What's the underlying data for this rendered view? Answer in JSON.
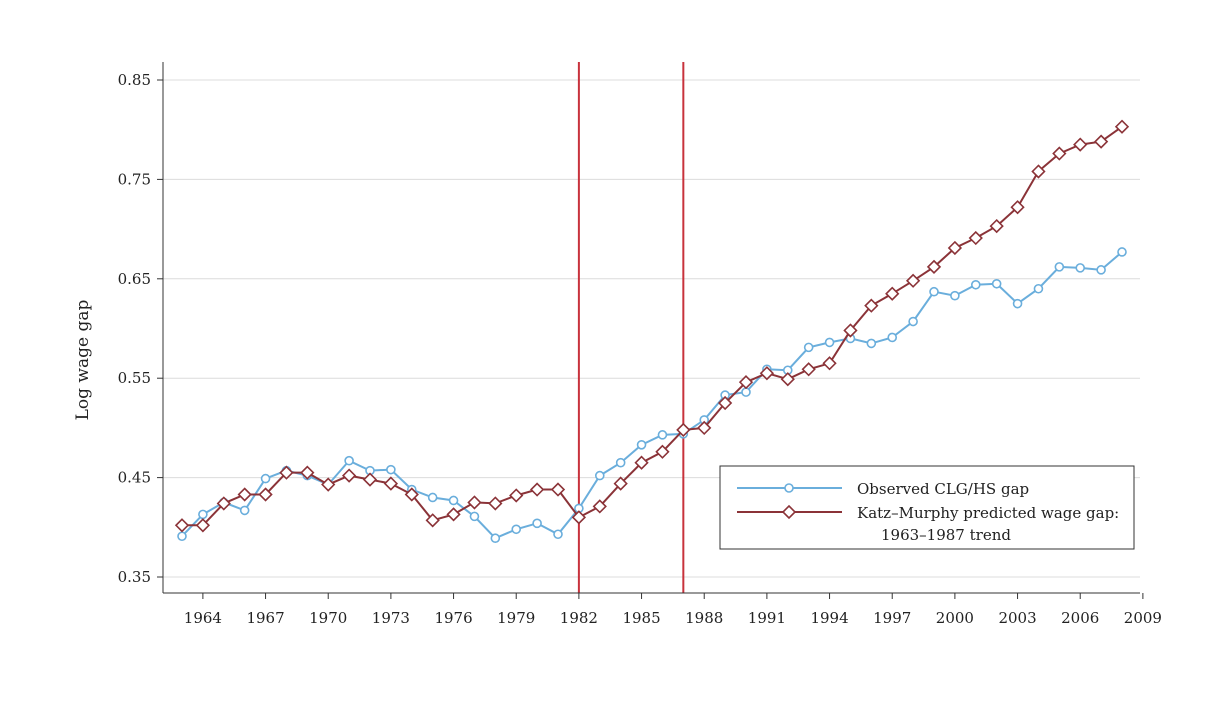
{
  "chart_data": {
    "type": "line",
    "title": "",
    "xlabel": "",
    "ylabel": "Log wage gap",
    "xlim": [
      1962,
      2009.5
    ],
    "ylim": [
      0.335,
      0.865
    ],
    "x_ticks": [
      1964,
      1967,
      1970,
      1973,
      1976,
      1979,
      1982,
      1985,
      1988,
      1991,
      1994,
      1997,
      2000,
      2003,
      2006,
      2009
    ],
    "y_ticks": [
      0.35,
      0.45,
      0.55,
      0.65,
      0.75,
      0.85
    ],
    "y_tick_labels": [
      "0.35",
      "0.45",
      "0.55",
      "0.65",
      "0.75",
      "0.85"
    ],
    "grid": "horizontal",
    "vertical_lines": [
      1982,
      1987
    ],
    "legend_position": "bottom-right",
    "series": [
      {
        "name": "Observed CLG/HS gap",
        "color": "#6aaedc",
        "marker": "circle",
        "x": [
          1963,
          1964,
          1965,
          1966,
          1967,
          1968,
          1969,
          1970,
          1971,
          1972,
          1973,
          1974,
          1975,
          1976,
          1977,
          1978,
          1979,
          1980,
          1981,
          1982,
          1983,
          1984,
          1985,
          1986,
          1987,
          1988,
          1989,
          1990,
          1991,
          1992,
          1993,
          1994,
          1995,
          1996,
          1997,
          1998,
          1999,
          2000,
          2001,
          2002,
          2003,
          2004,
          2005,
          2006,
          2007,
          2008
        ],
        "values": [
          0.391,
          0.413,
          0.425,
          0.417,
          0.449,
          0.457,
          0.452,
          0.443,
          0.467,
          0.457,
          0.458,
          0.438,
          0.43,
          0.427,
          0.411,
          0.389,
          0.398,
          0.404,
          0.393,
          0.419,
          0.452,
          0.465,
          0.483,
          0.493,
          0.494,
          0.508,
          0.533,
          0.536,
          0.559,
          0.558,
          0.581,
          0.586,
          0.59,
          0.585,
          0.591,
          0.607,
          0.637,
          0.633,
          0.644,
          0.645,
          0.625,
          0.64,
          0.662,
          0.661,
          0.659,
          0.677
        ]
      },
      {
        "name": "Katz–Murphy predicted wage gap:",
        "name_line2": "1963–1987 trend",
        "color": "#8b3338",
        "marker": "diamond",
        "x": [
          1963,
          1964,
          1965,
          1966,
          1967,
          1968,
          1969,
          1970,
          1971,
          1972,
          1973,
          1974,
          1975,
          1976,
          1977,
          1978,
          1979,
          1980,
          1981,
          1982,
          1983,
          1984,
          1985,
          1986,
          1987,
          1988,
          1989,
          1990,
          1991,
          1992,
          1993,
          1994,
          1995,
          1996,
          1997,
          1998,
          1999,
          2000,
          2001,
          2002,
          2003,
          2004,
          2005,
          2006,
          2007,
          2008
        ],
        "values": [
          0.402,
          0.402,
          0.424,
          0.433,
          0.433,
          0.455,
          0.455,
          0.443,
          0.452,
          0.448,
          0.444,
          0.433,
          0.407,
          0.413,
          0.425,
          0.424,
          0.432,
          0.438,
          0.438,
          0.41,
          0.421,
          0.444,
          0.465,
          0.476,
          0.498,
          0.5,
          0.525,
          0.546,
          0.555,
          0.549,
          0.559,
          0.565,
          0.598,
          0.623,
          0.635,
          0.648,
          0.662,
          0.681,
          0.691,
          0.703,
          0.722,
          0.758,
          0.776,
          0.785,
          0.788,
          0.803
        ]
      }
    ]
  }
}
